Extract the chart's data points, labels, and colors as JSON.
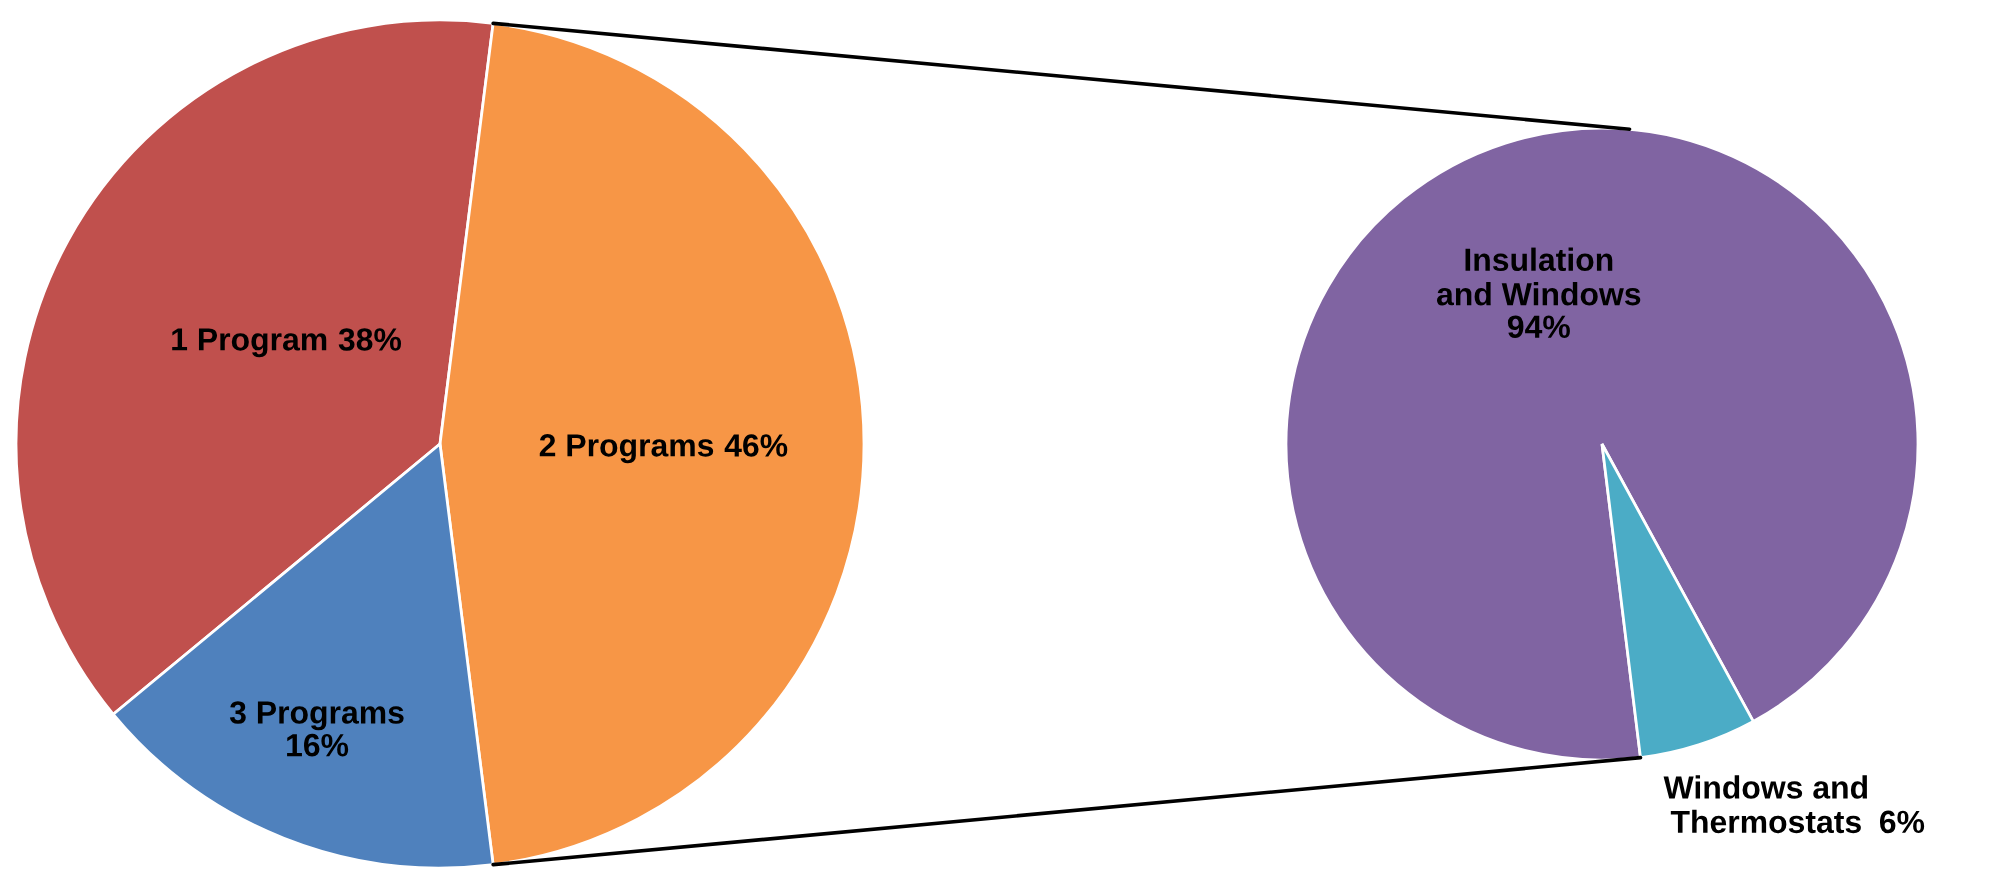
{
  "chart_data": [
    {
      "type": "pie",
      "categories": [
        "1 Program",
        "2 Programs",
        "3 Programs"
      ],
      "values": [
        38,
        46,
        16
      ],
      "colors": [
        "#c0504d",
        "#f79646",
        "#4f81bd"
      ],
      "value_labels": [
        "38%",
        "46%",
        "16%"
      ]
    },
    {
      "type": "pie",
      "categories": [
        "Insulation and Windows",
        "Windows and Thermostats"
      ],
      "values": [
        94,
        6
      ],
      "colors": [
        "#8064a2",
        "#4bacc6"
      ],
      "value_labels": [
        "94%",
        "6%"
      ]
    }
  ]
}
